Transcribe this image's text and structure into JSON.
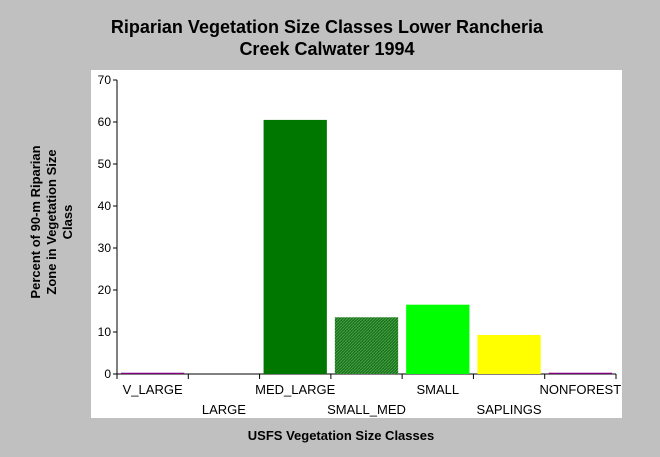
{
  "chart_data": {
    "type": "bar",
    "title_lines": [
      "Riparian Vegetation Size Classes Lower Rancheria",
      "Creek Calwater 1994"
    ],
    "xlabel": "USFS Vegetation Size Classes",
    "ylabel_lines": [
      "Percent of 90-m Riparian",
      "Zone in Vegetation Size",
      "Class"
    ],
    "categories": [
      "V_LARGE",
      "LARGE",
      "MED_LARGE",
      "SMALL_MED",
      "SMALL",
      "SAPLINGS",
      "NONFOREST"
    ],
    "values": [
      0.3,
      0,
      60.5,
      13.5,
      16.5,
      9.3,
      0.3
    ],
    "colors": [
      "#800080",
      "#800080",
      "#007800",
      "#2f8f2f",
      "#00ff00",
      "#ffff00",
      "#800080"
    ],
    "hatched": [
      false,
      false,
      false,
      true,
      false,
      false,
      false
    ],
    "ylim": [
      0,
      70
    ],
    "yticks": [
      0,
      10,
      20,
      30,
      40,
      50,
      60,
      70
    ],
    "grid": false,
    "legend": "none"
  }
}
